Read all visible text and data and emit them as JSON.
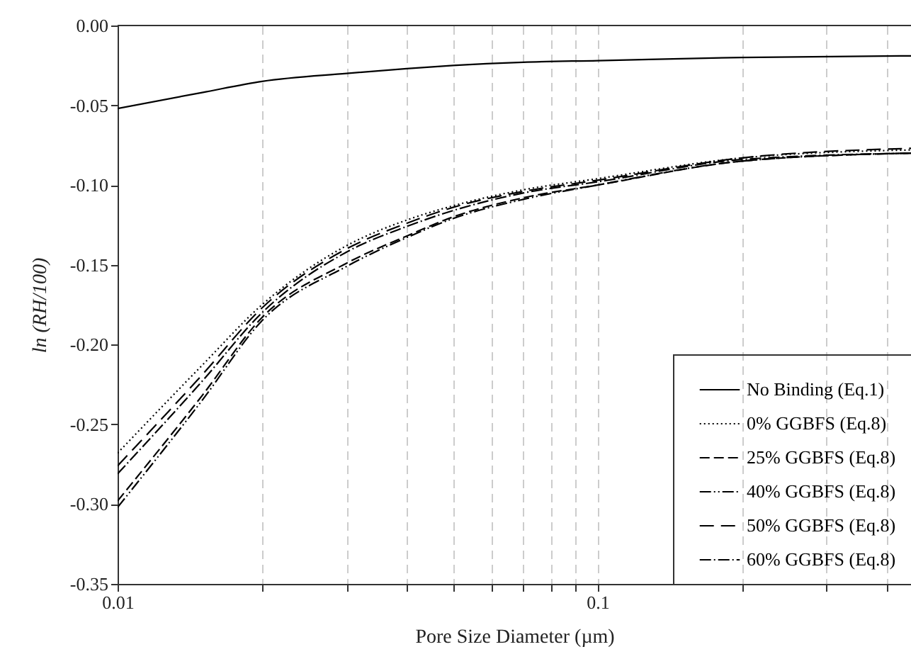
{
  "chart_data": {
    "type": "line",
    "xlabel": "Pore Size Diameter (µm)",
    "ylabel": "ln (RH/100)",
    "log": "x",
    "grid": "x",
    "legend": "bottom right",
    "x": [
      0.01,
      0.015,
      0.02,
      0.03,
      0.04,
      0.05,
      0.07,
      0.1,
      0.2,
      0.45
    ],
    "xlim": [
      0.01,
      0.45
    ],
    "xticks": [
      0.01,
      {
        "value": 0.02,
        "label": null
      },
      {
        "value": 0.03,
        "label": null
      },
      {
        "value": 0.04,
        "label": null
      },
      {
        "value": 0.05,
        "label": null
      },
      {
        "value": 0.06,
        "label": null
      },
      {
        "value": 0.07,
        "label": null
      },
      {
        "value": 0.08,
        "label": null
      },
      {
        "value": 0.09,
        "label": null
      },
      0.1,
      {
        "value": 0.2,
        "label": null
      },
      {
        "value": 0.3,
        "label": null
      },
      {
        "value": 0.4,
        "label": null
      }
    ],
    "ylim": [
      -0.35,
      0
    ],
    "yticks": [
      {
        "value": -0.35,
        "label": "-0.35"
      },
      {
        "value": -0.3,
        "label": "-0.30"
      },
      {
        "value": -0.25,
        "label": "-0.25"
      },
      {
        "value": -0.2,
        "label": "-0.20"
      },
      {
        "value": -0.15,
        "label": "-0.15"
      },
      {
        "value": -0.1,
        "label": "-0.10"
      },
      {
        "value": -0.05,
        "label": "-0.05"
      },
      {
        "value": 0,
        "label": "0.00"
      }
    ],
    "series": [
      {
        "name": "No Binding (Eq.1)",
        "color": "#000000",
        "line_style": "solid",
        "values": [
          -0.052,
          -0.042,
          -0.035,
          -0.03,
          -0.027,
          -0.025,
          -0.023,
          -0.022,
          -0.02,
          -0.019
        ]
      },
      {
        "name": "0% GGBFS (Eq.8)",
        "color": "#000000",
        "line_style": "dotted",
        "values": [
          -0.268,
          -0.213,
          -0.175,
          -0.138,
          -0.122,
          -0.113,
          -0.103,
          -0.096,
          -0.083,
          -0.078
        ]
      },
      {
        "name": "25% GGBFS (Eq.8)",
        "color": "#000000",
        "line_style": "dashed",
        "values": [
          -0.298,
          -0.232,
          -0.183,
          -0.149,
          -0.132,
          -0.12,
          -0.108,
          -0.1,
          -0.085,
          -0.08
        ]
      },
      {
        "name": "40% GGBFS (Eq.8)",
        "color": "#000000",
        "line_style": "dashed",
        "values": [
          -0.302,
          -0.235,
          -0.185,
          -0.151,
          -0.133,
          -0.121,
          -0.109,
          -0.1,
          -0.085,
          -0.08
        ]
      },
      {
        "name": "50% GGBFS (Eq.8)",
        "color": "#000000",
        "line_style": "dashed",
        "values": [
          -0.276,
          -0.219,
          -0.177,
          -0.14,
          -0.124,
          -0.114,
          -0.104,
          -0.097,
          -0.083,
          -0.077
        ]
      },
      {
        "name": "60% GGBFS (Eq.8)",
        "color": "#000000",
        "line_style": "dashed",
        "values": [
          -0.281,
          -0.223,
          -0.18,
          -0.142,
          -0.126,
          -0.116,
          -0.105,
          -0.098,
          -0.084,
          -0.08
        ]
      }
    ]
  }
}
